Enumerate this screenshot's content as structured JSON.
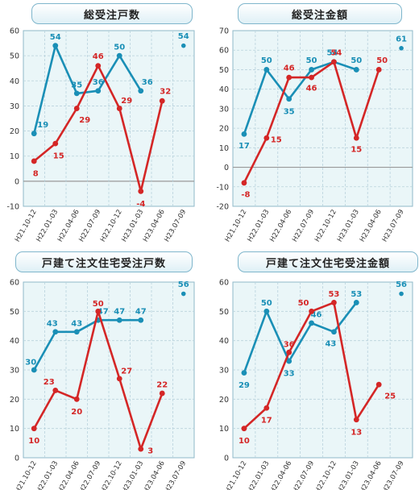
{
  "colors": {
    "blue": "#1a8fb6",
    "red": "#d42626",
    "plot_bg": "#eaf6f8",
    "grid": "#b9d2dc"
  },
  "chart_data": [
    {
      "type": "line",
      "title": "総受注戸数",
      "categories": [
        "H21.10-12",
        "H22.01-03",
        "H22.04-06",
        "H22.07-09",
        "H22.10-12",
        "H23.01-03",
        "H23.04-06",
        "H23.07-09"
      ],
      "ylim": [
        -10,
        60
      ],
      "yticks": [
        -10,
        0,
        10,
        20,
        30,
        40,
        50,
        60
      ],
      "grid": true,
      "series": [
        {
          "color": "blue",
          "values": [
            19,
            54,
            35,
            36,
            50,
            36,
            null,
            54
          ],
          "connected": [
            true,
            true,
            true,
            true,
            true,
            true,
            false,
            false
          ],
          "label_dy": [
            -11,
            -11,
            -11,
            -11,
            -11,
            -11,
            0,
            -12
          ],
          "label_dx": [
            11,
            0,
            0,
            0,
            0,
            8,
            0,
            0
          ]
        },
        {
          "color": "red",
          "values": [
            8,
            15,
            29,
            46,
            29,
            -4,
            32,
            null
          ],
          "connected": [
            true,
            true,
            true,
            true,
            true,
            true,
            true,
            false
          ],
          "label_dy": [
            15,
            15,
            14,
            -12,
            -10,
            15,
            -12,
            0
          ],
          "label_dx": [
            2,
            4,
            10,
            0,
            9,
            0,
            4,
            0
          ]
        }
      ]
    },
    {
      "type": "line",
      "title": "総受注金額",
      "categories": [
        "H21.10-12",
        "H22.01-03",
        "H22.04-06",
        "H22.07-09",
        "H22.10-12",
        "H23.01-03",
        "H23.04-06",
        "H23.07-09"
      ],
      "ylim": [
        -20,
        70
      ],
      "yticks": [
        -20,
        -10,
        0,
        10,
        20,
        30,
        40,
        50,
        60,
        70
      ],
      "grid": true,
      "series": [
        {
          "color": "blue",
          "values": [
            17,
            50,
            35,
            50,
            54,
            50,
            null,
            61
          ],
          "connected": [
            true,
            true,
            true,
            true,
            true,
            true,
            false,
            false
          ],
          "label_dy": [
            14,
            -12,
            15,
            -12,
            -12,
            -12,
            0,
            -12
          ],
          "label_dx": [
            0,
            0,
            0,
            0,
            -2,
            0,
            0,
            0
          ]
        },
        {
          "color": "red",
          "values": [
            -8,
            15,
            46,
            46,
            54,
            15,
            50,
            null
          ],
          "connected": [
            true,
            true,
            true,
            true,
            true,
            true,
            true,
            false
          ],
          "label_dy": [
            14,
            2,
            -12,
            13,
            -12,
            14,
            -12,
            0
          ],
          "label_dx": [
            2,
            12,
            0,
            0,
            3,
            0,
            4,
            0
          ]
        }
      ]
    },
    {
      "type": "line",
      "title": "戸建て注文住宅受注戸数",
      "categories": [
        "H21.10-12",
        "H22.01-03",
        "H22.04-06",
        "H22.07-09",
        "H22.10-12",
        "H23.01-03",
        "H23.04-06",
        "H23.07-09"
      ],
      "ylim": [
        0,
        60
      ],
      "yticks": [
        0,
        10,
        20,
        30,
        40,
        50,
        60
      ],
      "grid": true,
      "series": [
        {
          "color": "blue",
          "values": [
            30,
            43,
            43,
            47,
            47,
            47,
            null,
            56
          ],
          "connected": [
            true,
            true,
            true,
            true,
            true,
            true,
            false,
            false
          ],
          "label_dy": [
            -10,
            -11,
            -11,
            -11,
            -11,
            -11,
            0,
            -12
          ],
          "label_dx": [
            -4,
            -4,
            0,
            6,
            0,
            0,
            0,
            0
          ]
        },
        {
          "color": "red",
          "values": [
            10,
            23,
            20,
            50,
            27,
            3,
            22,
            null
          ],
          "connected": [
            true,
            true,
            true,
            true,
            true,
            true,
            true,
            false
          ],
          "label_dy": [
            15,
            -11,
            15,
            -10,
            -10,
            2,
            -11,
            0
          ],
          "label_dx": [
            0,
            -8,
            0,
            0,
            9,
            12,
            0,
            0
          ]
        }
      ]
    },
    {
      "type": "line",
      "title": "戸建て注文住宅受注金額",
      "categories": [
        "H21.10-12",
        "H22.01-03",
        "H22.04-06",
        "H22.07-09",
        "H22.10-12",
        "H23.01-03",
        "H23.04-06",
        "H23.07-09"
      ],
      "ylim": [
        0,
        60
      ],
      "yticks": [
        0,
        10,
        20,
        30,
        40,
        50,
        60
      ],
      "grid": true,
      "series": [
        {
          "color": "blue",
          "values": [
            29,
            50,
            33,
            46,
            43,
            53,
            null,
            56
          ],
          "connected": [
            true,
            true,
            true,
            true,
            true,
            true,
            false,
            false
          ],
          "label_dy": [
            15,
            -11,
            15,
            -11,
            14,
            -11,
            0,
            -12
          ],
          "label_dx": [
            0,
            0,
            0,
            6,
            -4,
            0,
            0,
            0
          ]
        },
        {
          "color": "red",
          "values": [
            10,
            17,
            36,
            50,
            53,
            13,
            25,
            null
          ],
          "connected": [
            true,
            true,
            true,
            true,
            true,
            true,
            true,
            false
          ],
          "label_dy": [
            15,
            15,
            -10,
            -11,
            -11,
            15,
            14,
            0
          ],
          "label_dx": [
            0,
            0,
            0,
            -10,
            0,
            0,
            14,
            0
          ]
        }
      ]
    }
  ]
}
